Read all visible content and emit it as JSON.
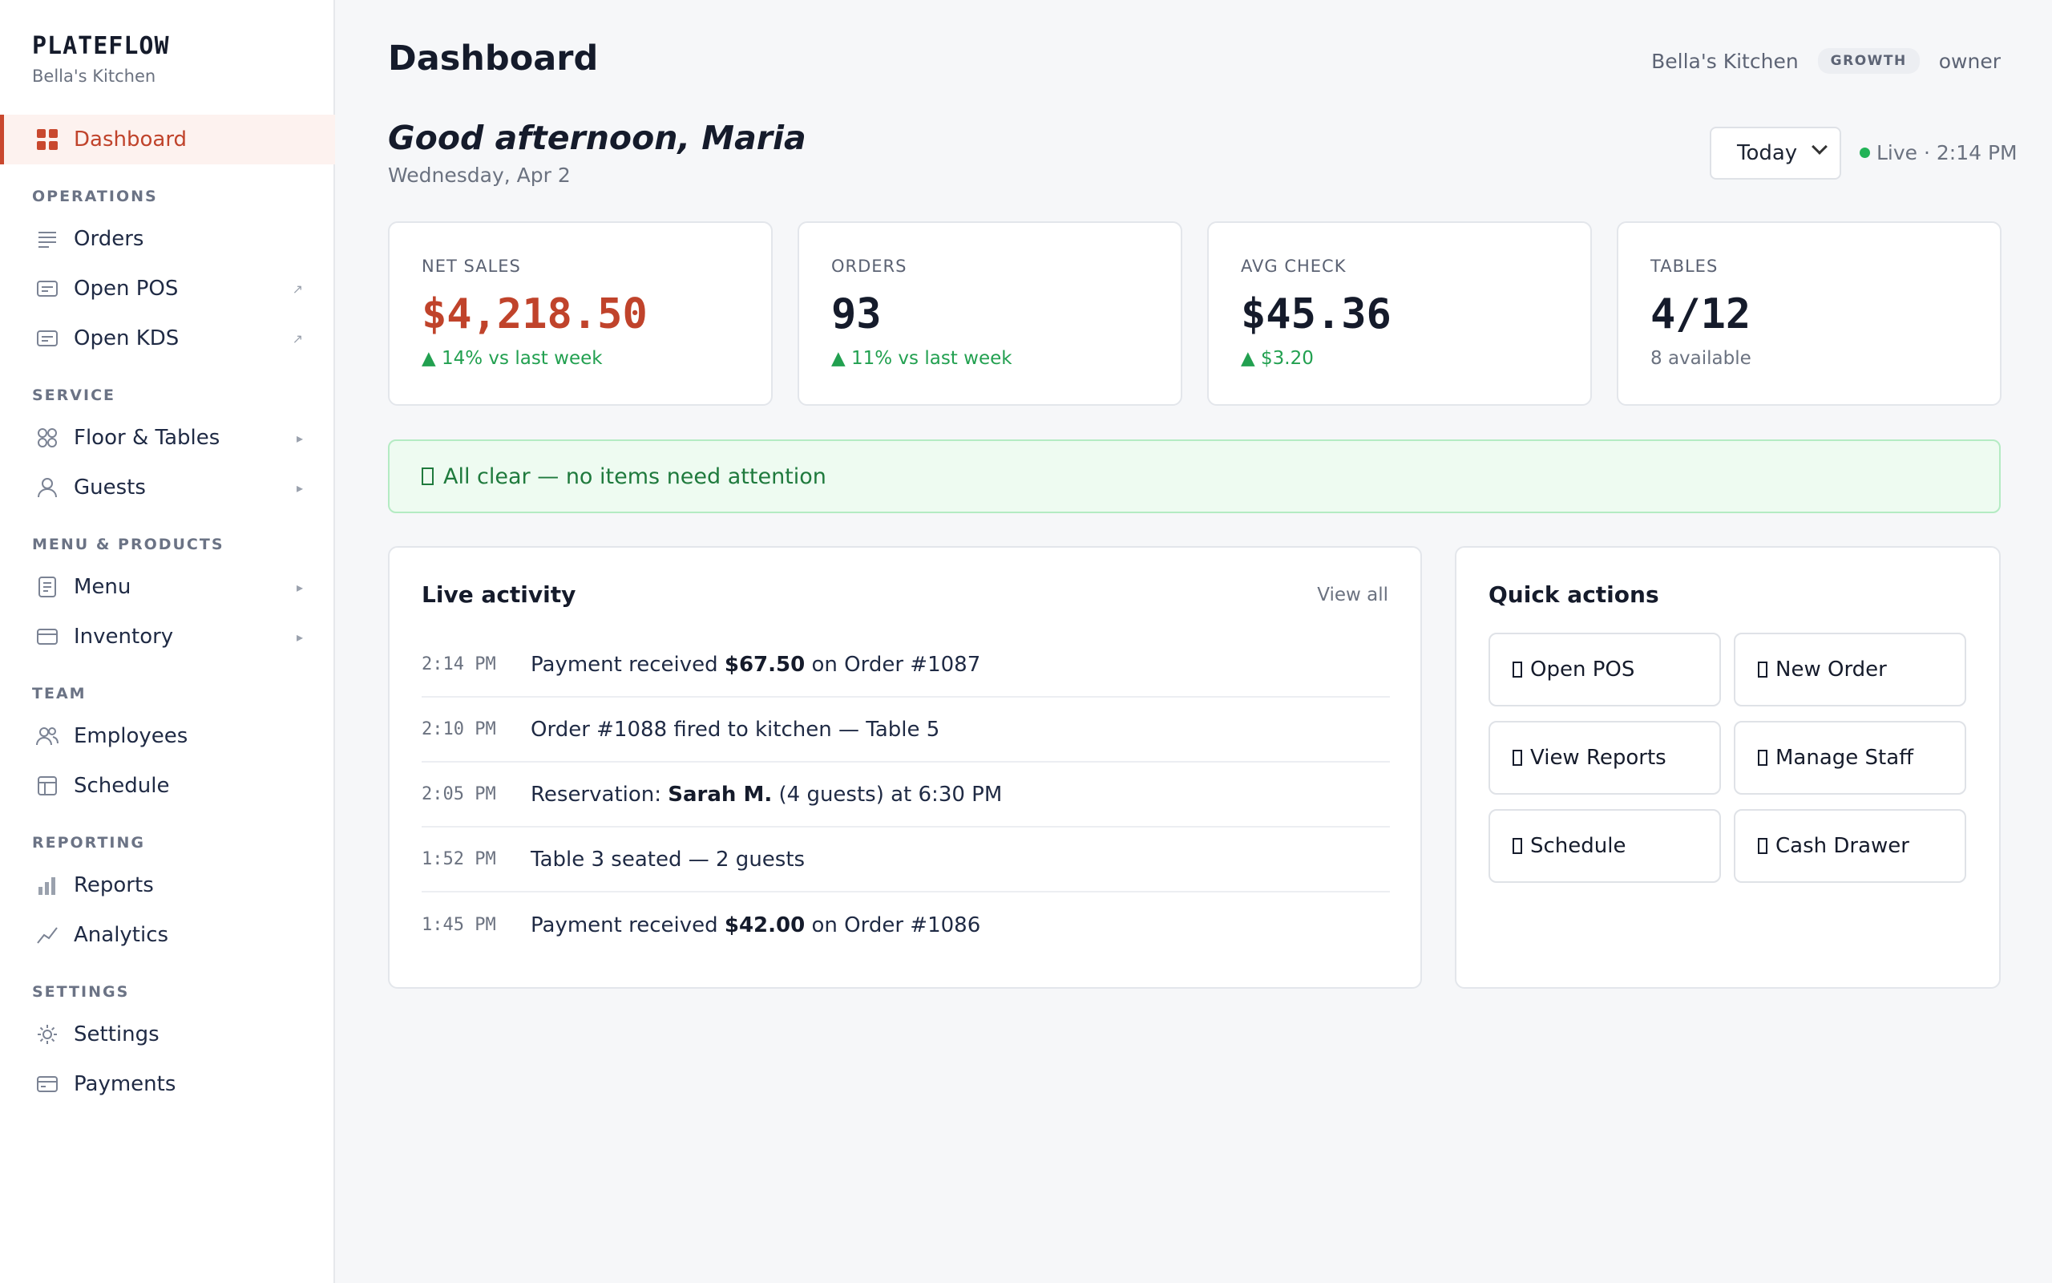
{
  "brand": {
    "name": "PLATEFLOW",
    "subtitle": "Bella's Kitchen"
  },
  "sidebar": {
    "dashboard": {
      "label": "Dashboard",
      "icon": "dashboard-grid-icon"
    },
    "sections": {
      "operations": "OPERATIONS",
      "service": "SERVICE",
      "menu_products": "MENU & PRODUCTS",
      "team": "TEAM",
      "reporting": "REPORTING",
      "settings": "SETTINGS"
    },
    "items": {
      "orders": {
        "label": "Orders",
        "icon": "list-icon"
      },
      "open_pos": {
        "label": "Open POS",
        "icon": "pos-icon",
        "arrow": "↗"
      },
      "open_kds": {
        "label": "Open KDS",
        "icon": "kds-icon",
        "arrow": "↗"
      },
      "floor_tables": {
        "label": "Floor & Tables",
        "icon": "tables-icon",
        "arrow": "▸"
      },
      "guests": {
        "label": "Guests",
        "icon": "person-icon",
        "arrow": "▸"
      },
      "menu": {
        "label": "Menu",
        "icon": "menu-doc-icon",
        "arrow": "▸"
      },
      "inventory": {
        "label": "Inventory",
        "icon": "box-icon",
        "arrow": "▸"
      },
      "employees": {
        "label": "Employees",
        "icon": "people-icon"
      },
      "schedule": {
        "label": "Schedule",
        "icon": "calendar-icon"
      },
      "reports": {
        "label": "Reports",
        "icon": "bar-chart-icon"
      },
      "analytics": {
        "label": "Analytics",
        "icon": "trend-line-icon"
      },
      "settings": {
        "label": "Settings",
        "icon": "gear-icon"
      },
      "payments": {
        "label": "Payments",
        "icon": "card-icon"
      }
    }
  },
  "header": {
    "title": "Dashboard",
    "org": "Bella's Kitchen",
    "plan": "GROWTH",
    "role": "owner"
  },
  "greeting": {
    "text": "Good afternoon, Maria",
    "date": "Wednesday, Apr 2"
  },
  "range": {
    "selected": "Today"
  },
  "live": {
    "text": "Live · 2:14 PM"
  },
  "kpis": {
    "net_sales": {
      "label": "NET SALES",
      "value": "$4,218.50",
      "delta": "▲ 14% vs last week"
    },
    "orders": {
      "label": "ORDERS",
      "value": "93",
      "delta": "▲ 11% vs last week"
    },
    "avg_check": {
      "label": "AVG CHECK",
      "value": "$45.36",
      "delta": "▲ $3.20"
    },
    "tables": {
      "label": "TABLES",
      "value": "4/12",
      "delta": "8 available"
    }
  },
  "alert": {
    "text": "All clear — no items need attention"
  },
  "activity": {
    "title": "Live activity",
    "view_all": "View all",
    "rows": [
      {
        "time": "2:14 PM",
        "pre": "Payment received ",
        "bold": "$67.50",
        "post": " on Order #1087"
      },
      {
        "time": "2:10 PM",
        "pre": "Order #1088 fired to kitchen — Table 5",
        "bold": "",
        "post": ""
      },
      {
        "time": "2:05 PM",
        "pre": "Reservation: ",
        "bold": "Sarah M.",
        "post": " (4 guests) at 6:30 PM"
      },
      {
        "time": "1:52 PM",
        "pre": "Table 3 seated — 2 guests",
        "bold": "",
        "post": ""
      },
      {
        "time": "1:45 PM",
        "pre": "Payment received ",
        "bold": "$42.00",
        "post": " on Order #1086"
      }
    ]
  },
  "quick_actions": {
    "title": "Quick actions",
    "open_pos": "Open POS",
    "new_order": "New Order",
    "view_reports": "View Reports",
    "manage_staff": "Manage Staff",
    "schedule": "Schedule",
    "cash_drawer": "Cash Drawer"
  },
  "colors": {
    "accent": "#c0432b",
    "positive": "#22a050",
    "live": "#22b357"
  }
}
